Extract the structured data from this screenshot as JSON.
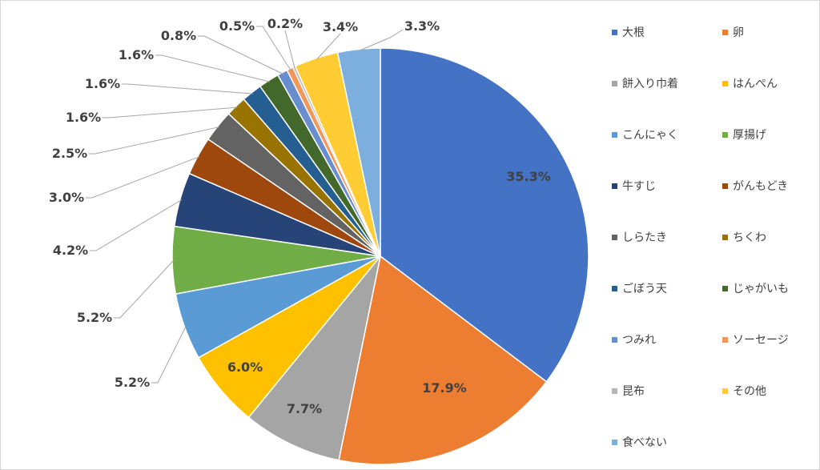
{
  "chart_data": {
    "type": "pie",
    "start_angle_deg": 0,
    "direction": "clockwise",
    "legend_position": "right",
    "slices": [
      {
        "name": "大根",
        "value": 35.3,
        "label": "35.3%",
        "color": "#4472C4"
      },
      {
        "name": "卵",
        "value": 17.9,
        "label": "17.9%",
        "color": "#ED7D31"
      },
      {
        "name": "餅入り巾着",
        "value": 7.7,
        "label": "7.7%",
        "color": "#A5A5A5"
      },
      {
        "name": "はんぺん",
        "value": 6.0,
        "label": "6.0%",
        "color": "#FFC000"
      },
      {
        "name": "こんにゃく",
        "value": 5.2,
        "label": "5.2%",
        "color": "#5B9BD5"
      },
      {
        "name": "厚揚げ",
        "value": 5.2,
        "label": "5.2%",
        "color": "#70AD47"
      },
      {
        "name": "牛すじ",
        "value": 4.2,
        "label": "4.2%",
        "color": "#264478"
      },
      {
        "name": "がんもどき",
        "value": 3.0,
        "label": "3.0%",
        "color": "#9E480E"
      },
      {
        "name": "しらたき",
        "value": 2.5,
        "label": "2.5%",
        "color": "#636363"
      },
      {
        "name": "ちくわ",
        "value": 1.6,
        "label": "1.6%",
        "color": "#997300"
      },
      {
        "name": "ごぼう天",
        "value": 1.6,
        "label": "1.6%",
        "color": "#255E91"
      },
      {
        "name": "じゃがいも",
        "value": 1.6,
        "label": "1.6%",
        "color": "#43682B"
      },
      {
        "name": "つみれ",
        "value": 0.8,
        "label": "0.8%",
        "color": "#698ED0"
      },
      {
        "name": "ソーセージ",
        "value": 0.5,
        "label": "0.5%",
        "color": "#F1975A"
      },
      {
        "name": "昆布",
        "value": 0.2,
        "label": "0.2%",
        "color": "#B7B7B7"
      },
      {
        "name": "その他",
        "value": 3.4,
        "label": "3.4%",
        "color": "#FFCD33"
      },
      {
        "name": "食べない",
        "value": 3.3,
        "label": "3.3%",
        "color": "#7CAFDD"
      }
    ]
  }
}
